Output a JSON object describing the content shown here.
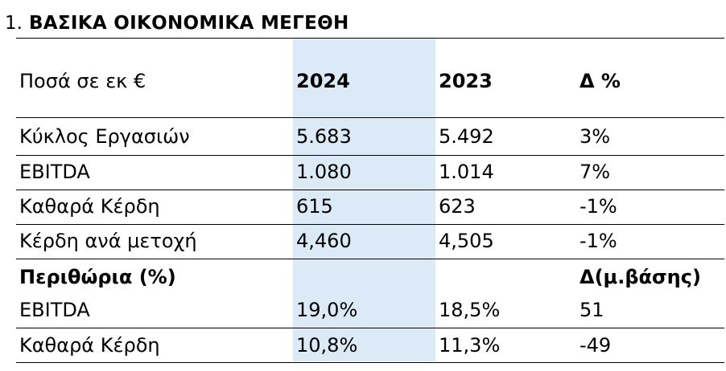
{
  "section": {
    "number": "1.",
    "title": "ΒΑΣΙΚΑ ΟΙΚΟΝΟΜΙΚΑ ΜΕΓΕΘΗ"
  },
  "header": {
    "label": "Ποσά σε εκ €",
    "col1": "2024",
    "col2": "2023",
    "col3": "Δ %"
  },
  "rows": [
    {
      "label": "Κύκλος Εργασιών",
      "v2024": "5.683",
      "v2023": "5.492",
      "delta": "3%"
    },
    {
      "label": "EBITDA",
      "v2024": "1.080",
      "v2023": "1.014",
      "delta": "7%"
    },
    {
      "label": "Καθαρά Κέρδη",
      "v2024": "615",
      "v2023": "623",
      "delta": "-1%"
    },
    {
      "label": "Κέρδη ανά μετοχή",
      "v2024": "4,460",
      "v2023": "4,505",
      "delta": "-1%"
    }
  ],
  "margins_header": {
    "label": "Περιθώρια (%)",
    "delta": "Δ(μ.βάσης)"
  },
  "margin_rows": [
    {
      "label": "EBITDA",
      "v2024": "19,0%",
      "v2023": "18,5%",
      "delta": "51"
    },
    {
      "label": "Καθαρά Κέρδη",
      "v2024": "10,8%",
      "v2023": "11,3%",
      "delta": "-49"
    }
  ]
}
